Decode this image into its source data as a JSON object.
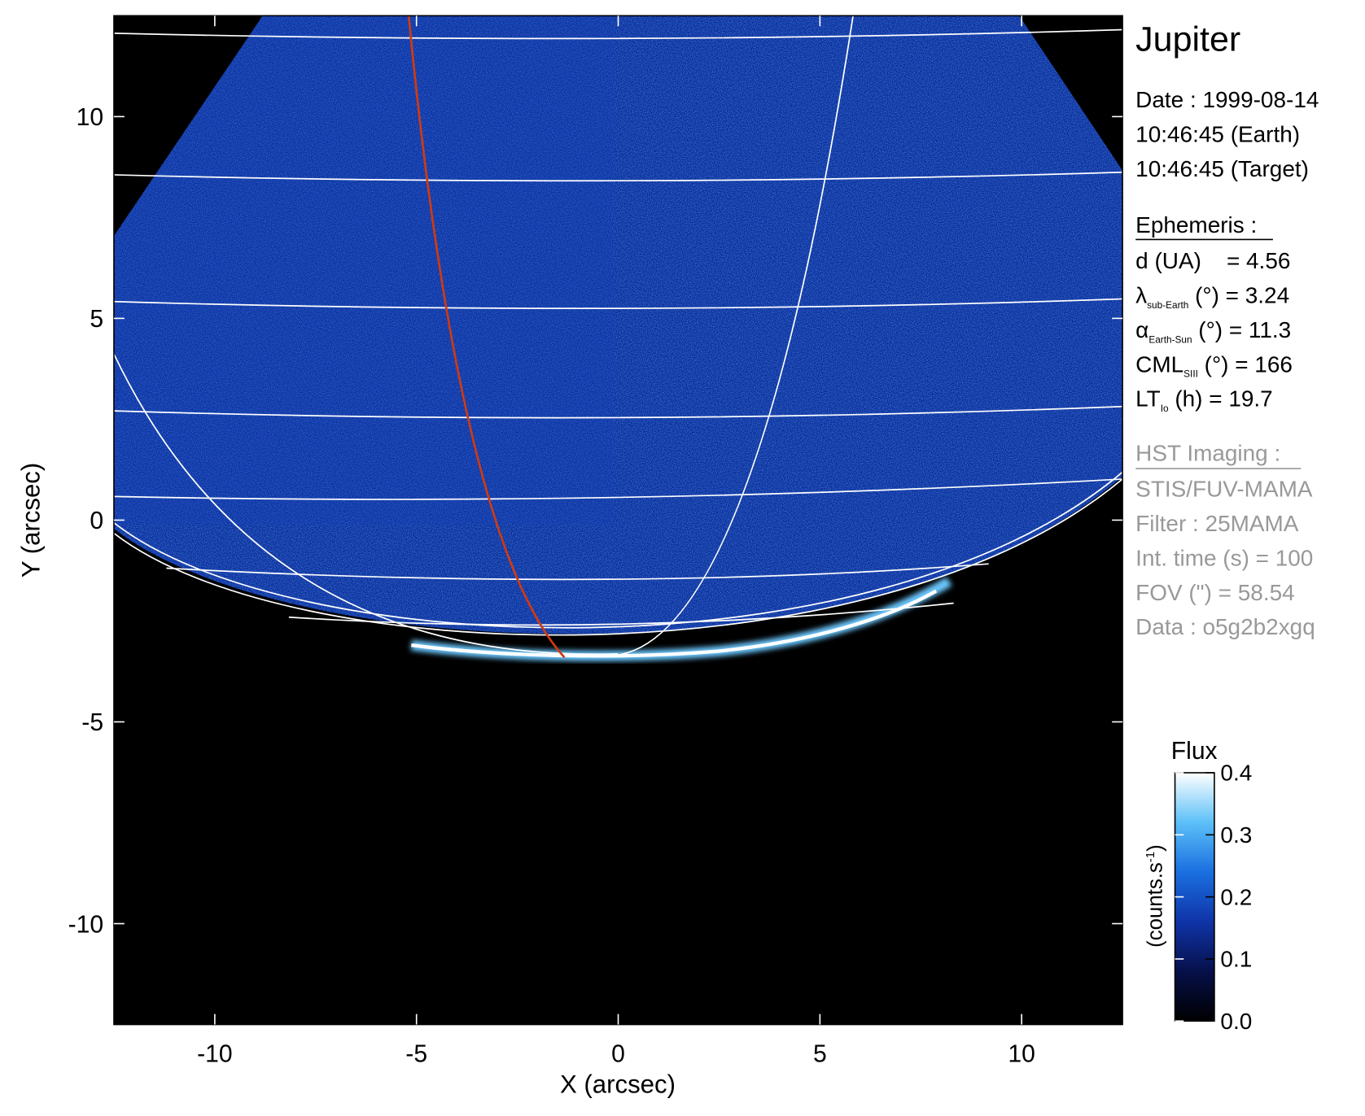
{
  "chart_data": {
    "type": "image",
    "xlabel": "X (arcsec)",
    "ylabel": "Y (arcsec)",
    "xlim": [
      -12.5,
      12.5
    ],
    "ylim": [
      -12.5,
      12.5
    ],
    "xticks": [
      -10,
      -5,
      0,
      5,
      10
    ],
    "yticks": [
      -10,
      -5,
      0,
      5,
      10
    ],
    "colormap": [
      "#000000",
      "#06104a",
      "#0f34a8",
      "#1a6fe0",
      "#5cc0f8",
      "#ffffff"
    ],
    "colorbar": {
      "title": "Flux",
      "label": [
        "(counts.s",
        "-1",
        ")"
      ],
      "lim": [
        0,
        0.4
      ],
      "ticks": [
        {
          "value": 0,
          "label": "0.0"
        },
        0.1,
        0.2,
        0.3,
        0.4
      ]
    },
    "info_panel": {
      "title": "Jupiter",
      "date_lines": [
        "Date : 1999-08-14",
        "10:46:45 (Earth)",
        "10:46:45 (Target)"
      ],
      "ephemeris": {
        "heading": "Ephemeris :",
        "items": [
          {
            "text": "d (UA)    = 4.56"
          },
          {
            "symbol": "λ",
            "subscript": "sub-Earth",
            "text": " (°) = 3.24"
          },
          {
            "symbol": "α",
            "subscript": "Earth-Sun",
            "text": " (°) = 11.3"
          },
          {
            "symbol": "CML",
            "subscript": "SIII",
            "text": " (°) = 166"
          },
          {
            "symbol": "LT",
            "subscript": "Io",
            "text": " (h) = 19.7"
          }
        ]
      },
      "instrument": {
        "heading": "HST Imaging :",
        "lines": [
          "STIS/FUV-MAMA",
          "Filter : 25MAMA",
          "Int. time (s) = 100",
          "FOV (\") = 58.54",
          "Data : o5g2b2xgq"
        ]
      }
    }
  }
}
